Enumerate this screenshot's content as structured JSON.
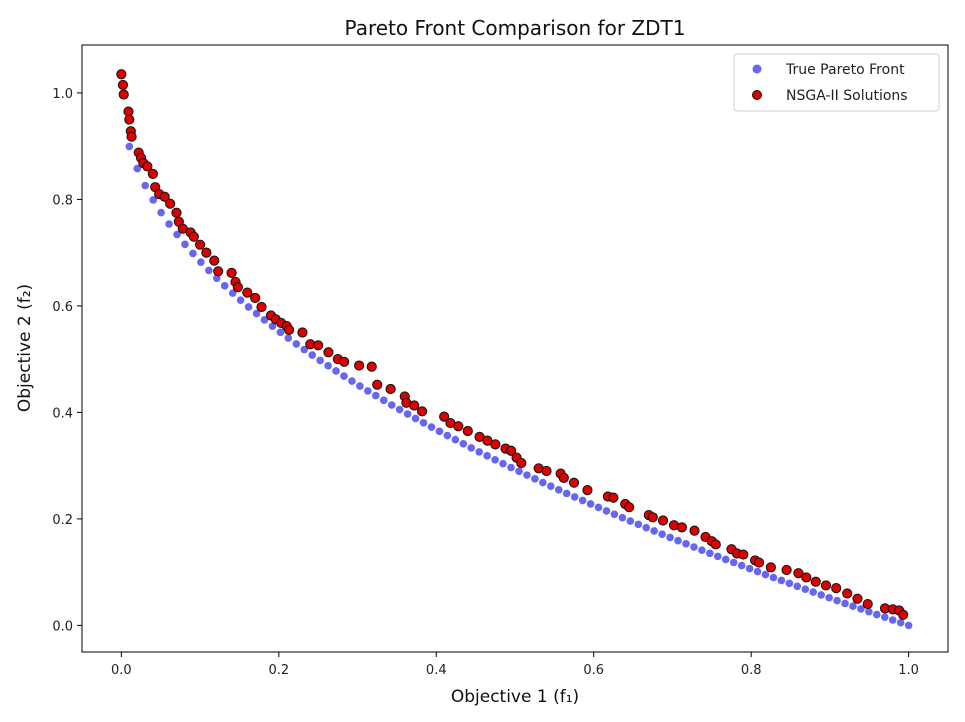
{
  "chart_data": {
    "type": "scatter",
    "title": "Pareto Front Comparison for ZDT1",
    "xlabel": "Objective 1 (f₁)",
    "ylabel": "Objective 2 (f₂)",
    "xlim": [
      -0.05,
      1.05
    ],
    "ylim": [
      -0.05,
      1.09
    ],
    "xticks": [
      0.0,
      0.2,
      0.4,
      0.6,
      0.8,
      1.0
    ],
    "yticks": [
      0.0,
      0.2,
      0.4,
      0.6,
      0.8,
      1.0
    ],
    "xtick_labels": [
      "0.0",
      "0.2",
      "0.4",
      "0.6",
      "0.8",
      "1.0"
    ],
    "ytick_labels": [
      "0.0",
      "0.2",
      "0.4",
      "0.6",
      "0.8",
      "1.0"
    ],
    "grid": false,
    "legend_position": "top-right",
    "series": [
      {
        "name": "True Pareto Front",
        "color": "#5555ee",
        "edge_color": "#5555ee",
        "x": [
          0.0101,
          0.0202,
          0.0303,
          0.0404,
          0.0505,
          0.0606,
          0.0707,
          0.0808,
          0.0909,
          0.101,
          0.1111,
          0.1212,
          0.1313,
          0.1414,
          0.1515,
          0.1616,
          0.1717,
          0.1818,
          0.1919,
          0.202,
          0.2121,
          0.2222,
          0.2323,
          0.2424,
          0.2525,
          0.2626,
          0.2727,
          0.2828,
          0.2929,
          0.303,
          0.3131,
          0.3232,
          0.3333,
          0.3434,
          0.3535,
          0.3636,
          0.3737,
          0.3838,
          0.3939,
          0.404,
          0.4141,
          0.4242,
          0.4343,
          0.4444,
          0.4545,
          0.4646,
          0.4747,
          0.4848,
          0.4949,
          0.5051,
          0.5152,
          0.5253,
          0.5354,
          0.5455,
          0.5556,
          0.5657,
          0.5758,
          0.5859,
          0.596,
          0.6061,
          0.6162,
          0.6263,
          0.6364,
          0.6465,
          0.6566,
          0.6667,
          0.6768,
          0.6869,
          0.697,
          0.7071,
          0.7172,
          0.7273,
          0.7374,
          0.7475,
          0.7576,
          0.7677,
          0.7778,
          0.7879,
          0.798,
          0.8081,
          0.8182,
          0.8283,
          0.8384,
          0.8485,
          0.8586,
          0.8687,
          0.8788,
          0.8889,
          0.899,
          0.9091,
          0.9192,
          0.9293,
          0.9394,
          0.9495,
          0.9596,
          0.9697,
          0.9798,
          0.9899,
          1.0
        ],
        "y": [
          0.8995,
          0.8579,
          0.8259,
          0.799,
          0.7753,
          0.7538,
          0.7341,
          0.7157,
          0.6985,
          0.6822,
          0.6667,
          0.6519,
          0.6377,
          0.624,
          0.6108,
          0.598,
          0.5856,
          0.5736,
          0.5619,
          0.5505,
          0.5395,
          0.5286,
          0.518,
          0.5077,
          0.4975,
          0.4876,
          0.4778,
          0.4682,
          0.4588,
          0.4495,
          0.4404,
          0.4315,
          0.4226,
          0.4139,
          0.4054,
          0.397,
          0.3887,
          0.3805,
          0.3724,
          0.3644,
          0.3565,
          0.3487,
          0.341,
          0.3333,
          0.3258,
          0.3184,
          0.311,
          0.3037,
          0.2965,
          0.2893,
          0.2822,
          0.2752,
          0.2683,
          0.2614,
          0.2546,
          0.2479,
          0.2412,
          0.2346,
          0.228,
          0.2215,
          0.215,
          0.2086,
          0.2023,
          0.196,
          0.1897,
          0.1835,
          0.1773,
          0.1712,
          0.1651,
          0.1591,
          0.1531,
          0.1472,
          0.1413,
          0.1354,
          0.1296,
          0.1238,
          0.1181,
          0.1124,
          0.1067,
          0.1011,
          0.0955,
          0.0899,
          0.0844,
          0.0789,
          0.0734,
          0.068,
          0.0626,
          0.0572,
          0.0519,
          0.0465,
          0.0412,
          0.036,
          0.0308,
          0.0256,
          0.0204,
          0.0153,
          0.0101,
          0.005,
          0.0
        ]
      },
      {
        "name": "NSGA-II Solutions",
        "color": "#dd0000",
        "edge_color": "#111111",
        "x": [
          0.0,
          0.002,
          0.003,
          0.009,
          0.01,
          0.012,
          0.013,
          0.022,
          0.025,
          0.028,
          0.033,
          0.04,
          0.043,
          0.048,
          0.055,
          0.062,
          0.07,
          0.073,
          0.078,
          0.088,
          0.092,
          0.1,
          0.108,
          0.118,
          0.123,
          0.14,
          0.145,
          0.148,
          0.16,
          0.17,
          0.178,
          0.19,
          0.196,
          0.203,
          0.21,
          0.213,
          0.23,
          0.24,
          0.25,
          0.263,
          0.275,
          0.283,
          0.302,
          0.318,
          0.325,
          0.342,
          0.36,
          0.362,
          0.372,
          0.382,
          0.41,
          0.418,
          0.428,
          0.44,
          0.455,
          0.465,
          0.475,
          0.488,
          0.495,
          0.502,
          0.508,
          0.53,
          0.54,
          0.558,
          0.562,
          0.575,
          0.592,
          0.618,
          0.625,
          0.64,
          0.645,
          0.67,
          0.675,
          0.688,
          0.702,
          0.712,
          0.728,
          0.742,
          0.75,
          0.755,
          0.775,
          0.782,
          0.79,
          0.805,
          0.81,
          0.825,
          0.845,
          0.86,
          0.87,
          0.882,
          0.895,
          0.908,
          0.922,
          0.935,
          0.948,
          0.97,
          0.98,
          0.988,
          0.993
        ],
        "y": [
          1.035,
          1.015,
          0.997,
          0.965,
          0.95,
          0.928,
          0.918,
          0.888,
          0.878,
          0.868,
          0.862,
          0.848,
          0.823,
          0.81,
          0.805,
          0.792,
          0.775,
          0.758,
          0.745,
          0.738,
          0.73,
          0.715,
          0.7,
          0.685,
          0.665,
          0.662,
          0.645,
          0.635,
          0.625,
          0.615,
          0.598,
          0.582,
          0.575,
          0.568,
          0.562,
          0.555,
          0.55,
          0.528,
          0.526,
          0.513,
          0.5,
          0.495,
          0.488,
          0.486,
          0.452,
          0.444,
          0.43,
          0.418,
          0.413,
          0.402,
          0.392,
          0.38,
          0.374,
          0.365,
          0.354,
          0.347,
          0.34,
          0.332,
          0.328,
          0.315,
          0.305,
          0.295,
          0.29,
          0.285,
          0.277,
          0.268,
          0.254,
          0.242,
          0.24,
          0.228,
          0.222,
          0.207,
          0.203,
          0.197,
          0.188,
          0.184,
          0.178,
          0.166,
          0.158,
          0.152,
          0.143,
          0.135,
          0.133,
          0.122,
          0.118,
          0.109,
          0.104,
          0.098,
          0.09,
          0.082,
          0.075,
          0.07,
          0.06,
          0.05,
          0.04,
          0.032,
          0.03,
          0.028,
          0.02
        ]
      }
    ]
  }
}
